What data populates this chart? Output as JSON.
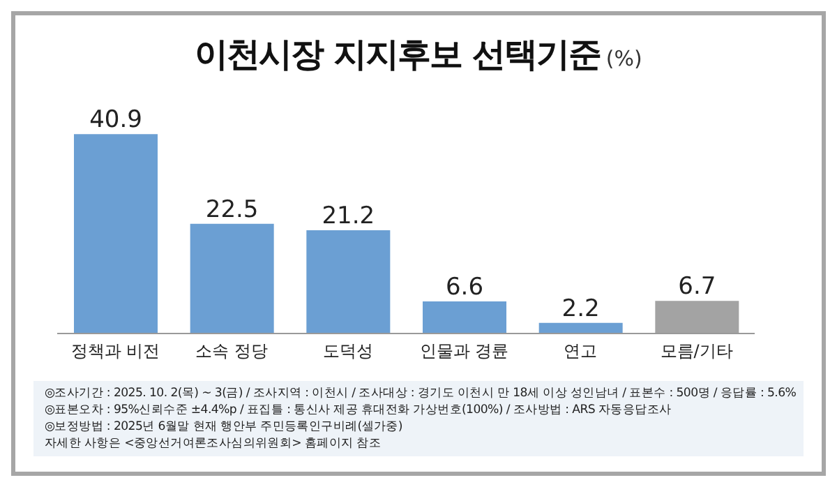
{
  "chart_data": {
    "type": "bar",
    "title": "이천시장 지지후보 선택기준",
    "subtitle": "(%)",
    "categories": [
      "정책과 비전",
      "소속 정당",
      "도덕성",
      "인물과 경륜",
      "연고",
      "모름/기타"
    ],
    "values": [
      40.9,
      22.5,
      21.2,
      6.6,
      2.2,
      6.7
    ],
    "colors": [
      "#6b9fd3",
      "#6b9fd3",
      "#6b9fd3",
      "#6b9fd3",
      "#6b9fd3",
      "#a3a3a3"
    ],
    "data_labels": true,
    "grid": false,
    "legend": false,
    "annotations": [
      "◎조사기간 : 2025. 10. 2(목) ~ 3(금) / 조사지역 : 이천시 / 조사대상 : 경기도 이천시 만 18세 이상 성인남녀 / 표본수 : 500명 / 응답률 : 5.6%",
      "◎표본오차 : 95%신뢰수준 ±4.4%p  / 표집틀 : 통신사 제공 휴대전화 가상번호(100%) / 조사방법 : ARS 자동응답조사",
      "◎보정방법 : 2025년 6월말 현재 행안부 주민등록인구비례(셀가중)",
      "자세한 사항은 <중앙선거여론조사심의위원회> 홈페이지 참조"
    ]
  }
}
